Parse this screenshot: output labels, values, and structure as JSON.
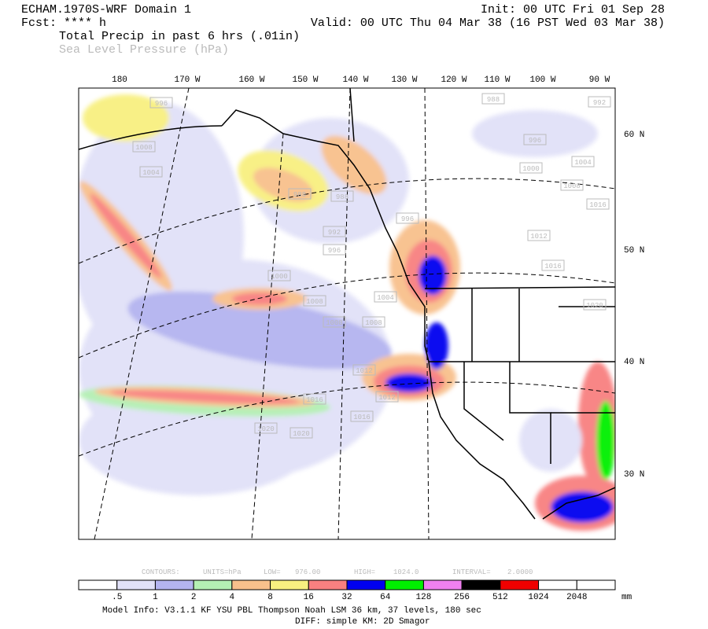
{
  "header": {
    "model": "ECHAM.1970S-WRF Domain 1",
    "init": "Init: 00 UTC Fri 01 Sep 28",
    "fcst": "Fcst: **** h",
    "valid": "Valid: 00 UTC Thu 04 Mar 38 (16 PST Wed 03 Mar 38)",
    "field1": "Total Precip in past 6 hrs (.01in)",
    "field2": "Sea Level Pressure (hPa)"
  },
  "map": {
    "lon_labels": [
      "180",
      "170 W",
      "160 W",
      "150 W",
      "140 W",
      "130 W",
      "120 W",
      "110 W",
      "100 W",
      "90 W"
    ],
    "lat_labels": [
      "60 N",
      "50 N",
      "40 N",
      "30 N"
    ],
    "contour_labels": [
      "996",
      "988",
      "992",
      "1008",
      "1004",
      "996",
      "1000",
      "1004",
      "1008",
      "1016",
      "988",
      "988",
      "992",
      "996",
      "996",
      "1012",
      "1016",
      "1000",
      "1004",
      "1008",
      "1008",
      "1008",
      "1012",
      "1012",
      "1016",
      "1016",
      "1020",
      "1020",
      "1020"
    ]
  },
  "contour_info": {
    "contours": "CONTOURS:",
    "units": "UNITS=hPa",
    "low": "LOW=",
    "low_value": "976.00",
    "high": "HIGH=",
    "high_value": "1024.0",
    "interval": "INTERVAL=",
    "interval_value": "2.0000"
  },
  "legend": {
    "labels": [
      ".5",
      "1",
      "2",
      "4",
      "8",
      "16",
      "32",
      "64",
      "128",
      "256",
      "512",
      "1024",
      "2048"
    ],
    "unit": "mm",
    "colors": [
      "#ffffff",
      "#e1e1f8",
      "#b4b4f0",
      "#b4f0b4",
      "#f8c08c",
      "#f8f080",
      "#f88080",
      "#0000f0",
      "#00f000",
      "#f080f0",
      "#000000",
      "#f00000",
      "#ffffff",
      "#ffffff"
    ]
  },
  "footer": {
    "model_info": "Model Info: V3.1.1   KF     YSU PBL  Thompson    Noah LSM  36 km,   37 levels,  180 sec",
    "diff": "DIFF: simple KM: 2D Smagor"
  }
}
